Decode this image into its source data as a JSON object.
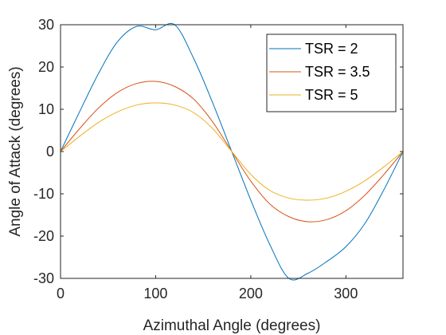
{
  "chart_data": {
    "type": "line",
    "xlabel": "Azimuthal Angle (degrees)",
    "ylabel": "Angle of Attack (degrees)",
    "xlim": [
      0,
      360
    ],
    "ylim": [
      -30,
      30
    ],
    "xticks": [
      0,
      100,
      200,
      300
    ],
    "yticks": [
      30,
      20,
      10,
      0,
      -10,
      -20,
      -30
    ],
    "grid": false,
    "legend_position": "top-right",
    "x": [
      0,
      20,
      40,
      60,
      80,
      100,
      120,
      140,
      160,
      180,
      200,
      220,
      240,
      260,
      280,
      300,
      320,
      340,
      360
    ],
    "series": [
      {
        "name": "TSR = 2",
        "color": "#0072BD",
        "values": [
          0,
          9.4,
          18.5,
          26.0,
          29.6,
          28.8,
          30.0,
          22.0,
          11.5,
          0,
          -11.5,
          -22.0,
          -30.0,
          -28.8,
          -26.0,
          -22.5,
          -17.0,
          -9.0,
          0
        ]
      },
      {
        "name": "TSR = 3.5",
        "color": "#D95319",
        "values": [
          0,
          5.4,
          10.3,
          14.0,
          16.1,
          16.6,
          15.4,
          12.4,
          7.0,
          0,
          -7.0,
          -12.4,
          -15.4,
          -16.6,
          -16.1,
          -14.0,
          -10.3,
          -5.4,
          0
        ]
      },
      {
        "name": "TSR = 5",
        "color": "#EDB120",
        "values": [
          0,
          3.6,
          6.9,
          9.4,
          11.0,
          11.5,
          11.0,
          9.2,
          5.4,
          0,
          -5.4,
          -9.2,
          -11.0,
          -11.5,
          -11.0,
          -9.4,
          -6.9,
          -3.6,
          0
        ]
      }
    ]
  }
}
